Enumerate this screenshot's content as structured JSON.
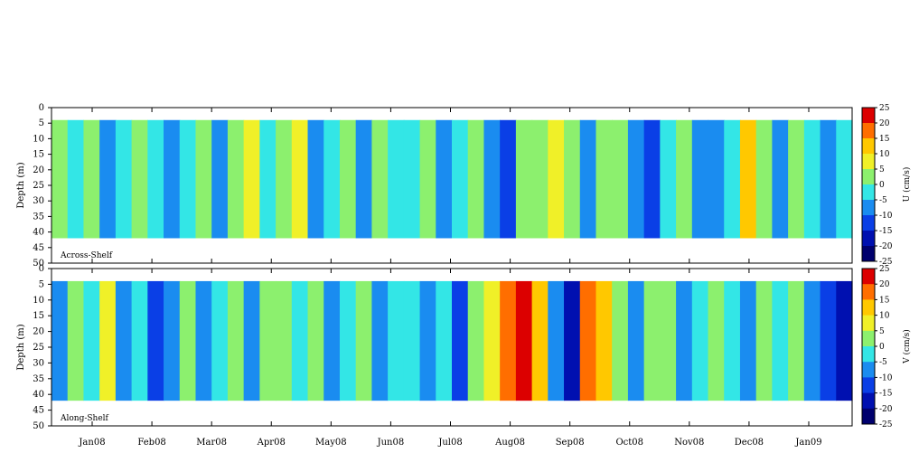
{
  "chart_data": [
    {
      "type": "heatmap",
      "panel_label": "Across-Shelf",
      "ylabel": "Depth (m)",
      "y_ticks": [
        "0",
        "5",
        "10",
        "15",
        "20",
        "25",
        "30",
        "35",
        "40",
        "45",
        "50"
      ],
      "ylim": [
        0,
        50
      ],
      "x_ticks": [
        "Jan08",
        "Feb08",
        "Mar08",
        "Apr08",
        "May08",
        "Jun08",
        "Jul08",
        "Aug08",
        "Sep08",
        "Oct08",
        "Nov08",
        "Dec08",
        "Jan09"
      ],
      "colorbar_label": "U (cm/s)",
      "colorbar_ticks": [
        "25",
        "20",
        "15",
        "10",
        "5",
        "0",
        "-5",
        "-10",
        "-15",
        "-20",
        "-25"
      ],
      "data_depth_range": [
        4,
        42
      ],
      "values_along_time_cm_s": [
        3,
        -4,
        2,
        -8,
        -2,
        3,
        -5,
        -9,
        -4,
        4,
        -6,
        1,
        8,
        -3,
        2,
        5,
        -6,
        -2,
        1,
        -9,
        3,
        -4,
        -5,
        2,
        -6,
        -3,
        1,
        -8,
        -12,
        2,
        4,
        9,
        3,
        -6,
        4,
        1,
        -7,
        -13,
        -3,
        4,
        -6,
        -9,
        -2,
        11,
        4,
        -6,
        1,
        -3,
        -10,
        -5
      ]
    },
    {
      "type": "heatmap",
      "panel_label": "Along-Shelf",
      "ylabel": "Depth (m)",
      "y_ticks": [
        "0",
        "5",
        "10",
        "15",
        "20",
        "25",
        "30",
        "35",
        "40",
        "45",
        "50"
      ],
      "ylim": [
        0,
        50
      ],
      "x_ticks": [
        "Jan08",
        "Feb08",
        "Mar08",
        "Apr08",
        "May08",
        "Jun08",
        "Jul08",
        "Aug08",
        "Sep08",
        "Oct08",
        "Nov08",
        "Dec08",
        "Jan09"
      ],
      "colorbar_label": "V (cm/s)",
      "colorbar_ticks": [
        "25",
        "20",
        "15",
        "10",
        "5",
        "0",
        "-5",
        "-10",
        "-15",
        "-20",
        "-25"
      ],
      "data_depth_range": [
        4,
        42
      ],
      "values_along_time_cm_s": [
        -6,
        2,
        -4,
        7,
        -9,
        -3,
        -12,
        -6,
        1,
        -10,
        -4,
        2,
        -7,
        3,
        1,
        -5,
        4,
        -6,
        -3,
        2,
        -8,
        -4,
        -2,
        -9,
        -5,
        -14,
        3,
        9,
        16,
        21,
        12,
        -8,
        -16,
        19,
        11,
        3,
        -7,
        1,
        4,
        -6,
        -3,
        2,
        -5,
        -9,
        3,
        -2,
        4,
        -8,
        -14,
        -18
      ]
    }
  ],
  "colorscale": [
    {
      "from": -25,
      "to": -20,
      "color": "#00006e"
    },
    {
      "from": -20,
      "to": -15,
      "color": "#0010b0"
    },
    {
      "from": -15,
      "to": -10,
      "color": "#0a3fe6"
    },
    {
      "from": -10,
      "to": -5,
      "color": "#1a8cf0"
    },
    {
      "from": -5,
      "to": 0,
      "color": "#33e6e6"
    },
    {
      "from": 0,
      "to": 5,
      "color": "#8cf06e"
    },
    {
      "from": 5,
      "to": 10,
      "color": "#f0f028"
    },
    {
      "from": 10,
      "to": 15,
      "color": "#ffc800"
    },
    {
      "from": 15,
      "to": 20,
      "color": "#ff6e00"
    },
    {
      "from": 20,
      "to": 25,
      "color": "#dc0000"
    }
  ]
}
